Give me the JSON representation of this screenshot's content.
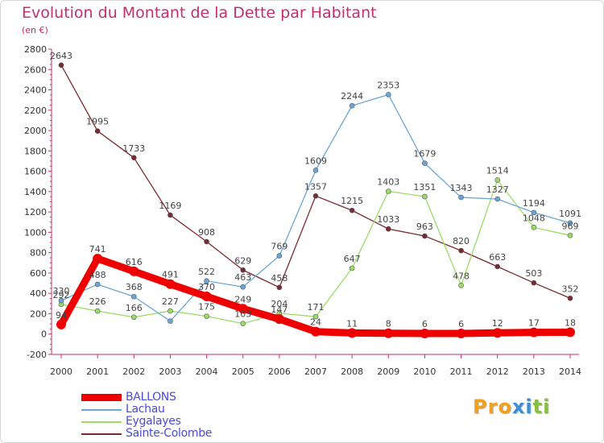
{
  "title": "Evolution du Montant de la Dette par Habitant",
  "subtitle": "(en €)",
  "logo_letters": [
    {
      "ch": "P",
      "color": "#f0a020"
    },
    {
      "ch": "r",
      "color": "#f0a020"
    },
    {
      "ch": "o",
      "color": "#f0a020"
    },
    {
      "ch": "x",
      "color": "#3a8fd8"
    },
    {
      "ch": "i",
      "color": "#3a8fd8"
    },
    {
      "ch": "t",
      "color": "#88c040"
    },
    {
      "ch": "i",
      "color": "#88c040"
    }
  ],
  "chart_data": {
    "type": "line",
    "title": "Evolution du Montant de la Dette par Habitant",
    "subtitle": "(en €)",
    "x": [
      "2000",
      "2001",
      "2002",
      "2003",
      "2004",
      "2005",
      "2006",
      "2007",
      "2008",
      "2009",
      "2010",
      "2011",
      "2012",
      "2013",
      "2014"
    ],
    "y_ticks": [
      "-200",
      "0",
      "200",
      "400",
      "600",
      "800",
      "1000",
      "1200",
      "1400",
      "1600",
      "1800",
      "2000",
      "2200",
      "2400",
      "2600",
      "2800"
    ],
    "ylim": [
      -200,
      2800
    ],
    "grid": false,
    "legend_position": "bottom-left",
    "series": [
      {
        "name": "BALLONS",
        "color": "#ee0000",
        "line_width": 9,
        "values": [
          94,
          741,
          616,
          491,
          370,
          249,
          147,
          24,
          11,
          8,
          6,
          6,
          12,
          17,
          18
        ],
        "labels": [
          "94",
          "741",
          "616",
          "491",
          "370",
          "249",
          "147",
          "24",
          "11",
          "8",
          "6",
          "6",
          "12",
          "17",
          "18"
        ]
      },
      {
        "name": "Lachau",
        "color": "#6aa6d8",
        "line_width": 1.3,
        "values": [
          330,
          488,
          368,
          127,
          522,
          463,
          769,
          1609,
          2244,
          2353,
          1679,
          1343,
          1327,
          1194,
          1091
        ],
        "labels": [
          "330",
          "488",
          "368",
          "",
          "522",
          "463",
          "769",
          "1609",
          "2244",
          "2353",
          "1679",
          "1343",
          "1327",
          "1194",
          "1091"
        ]
      },
      {
        "name": "Eygalayes",
        "color": "#99dd66",
        "line_width": 1.3,
        "values": [
          292,
          226,
          166,
          227,
          175,
          103,
          204,
          171,
          647,
          1403,
          1351,
          478,
          1514,
          1048,
          969
        ],
        "labels": [
          "292",
          "226",
          "166",
          "227",
          "175",
          "103",
          "204",
          "171",
          "647",
          "1403",
          "1351",
          "478",
          "1514",
          "1048",
          "969"
        ]
      },
      {
        "name": "Sainte-Colombe",
        "color": "#7a2a30",
        "line_width": 1.3,
        "values": [
          2643,
          1995,
          1733,
          1169,
          908,
          629,
          458,
          1357,
          1215,
          1033,
          963,
          820,
          663,
          503,
          352
        ],
        "labels": [
          "2643",
          "1995",
          "1733",
          "1169",
          "908",
          "629",
          "458",
          "1357",
          "1215",
          "1033",
          "963",
          "820",
          "663",
          "503",
          "352"
        ]
      }
    ]
  }
}
